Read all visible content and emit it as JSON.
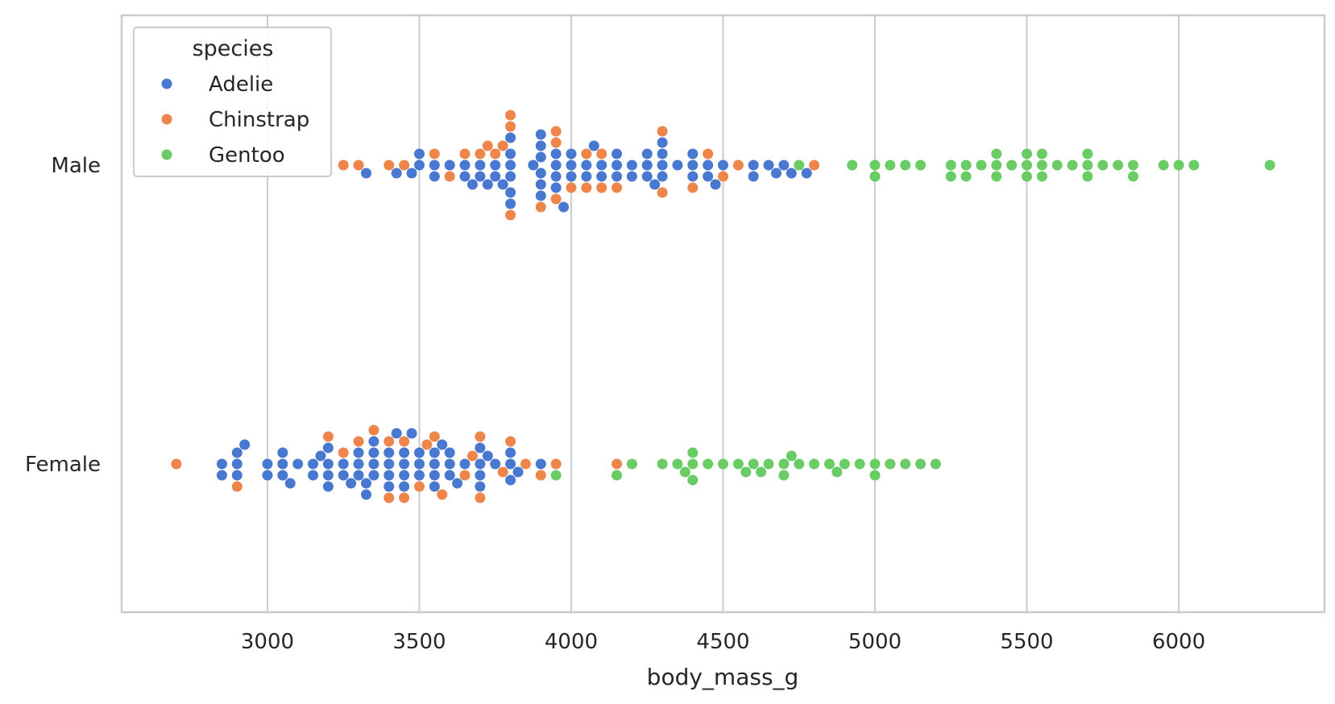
{
  "chart_data": {
    "type": "scatter",
    "kind": "swarm",
    "orientation": "horizontal",
    "title": "",
    "xlabel": "body_mass_g",
    "ylabel": "",
    "xlim": [
      2520,
      6480
    ],
    "xticks": [
      3000,
      3500,
      4000,
      4500,
      5000,
      5500,
      6000
    ],
    "xtick_labels": [
      "3000",
      "3500",
      "4000",
      "4500",
      "5000",
      "5500",
      "6000"
    ],
    "categories": [
      "Male",
      "Female"
    ],
    "grid": "x",
    "legend": {
      "title": "species",
      "placement": "top-left",
      "entries": [
        "Adelie",
        "Chinstrap",
        "Gentoo"
      ]
    },
    "colors": {
      "Adelie": "#4878d0",
      "Chinstrap": "#ee854a",
      "Gentoo": "#6acc64"
    },
    "series": [
      {
        "name": "Adelie",
        "points": [
          {
            "category": "Male",
            "values": [
              3325,
              3425,
              3475,
              3500,
              3500,
              3550,
              3550,
              3600,
              3650,
              3650,
              3675,
              3700,
              3700,
              3725,
              3750,
              3750,
              3775,
              3800,
              3800,
              3800,
              3800,
              3800,
              3800,
              3875,
              3900,
              3900,
              3900,
              3900,
              3900,
              3900,
              3950,
              3950,
              3950,
              3950,
              3975,
              4000,
              4000,
              4000,
              4050,
              4050,
              4075,
              4100,
              4100,
              4150,
              4150,
              4150,
              4200,
              4200,
              4250,
              4250,
              4250,
              4275,
              4300,
              4300,
              4300,
              4300,
              4350,
              4400,
              4400,
              4400,
              4450,
              4450,
              4475,
              4500,
              4600,
              4600,
              4650,
              4675,
              4700,
              4725,
              4775
            ]
          },
          {
            "category": "Female",
            "values": [
              2850,
              2850,
              2900,
              2900,
              2900,
              2925,
              3000,
              3000,
              3050,
              3050,
              3050,
              3075,
              3100,
              3150,
              3150,
              3175,
              3200,
              3200,
              3200,
              3200,
              3250,
              3250,
              3275,
              3300,
              3300,
              3300,
              3325,
              3325,
              3350,
              3350,
              3350,
              3350,
              3400,
              3400,
              3400,
              3400,
              3425,
              3450,
              3450,
              3450,
              3450,
              3475,
              3500,
              3500,
              3500,
              3550,
              3550,
              3550,
              3550,
              3575,
              3600,
              3600,
              3600,
              3625,
              3650,
              3700,
              3700,
              3700,
              3700,
              3725,
              3750,
              3800,
              3800,
              3800,
              3825,
              3900
            ]
          }
        ]
      },
      {
        "name": "Chinstrap",
        "points": [
          {
            "category": "Male",
            "values": [
              3250,
              3300,
              3400,
              3450,
              3550,
              3600,
              3650,
              3700,
              3725,
              3750,
              3775,
              3800,
              3800,
              3800,
              3900,
              3950,
              3950,
              3950,
              4000,
              4050,
              4050,
              4100,
              4100,
              4150,
              4300,
              4300,
              4400,
              4450,
              4500,
              4550,
              4800
            ]
          },
          {
            "category": "Female",
            "values": [
              2700,
              2900,
              3200,
              3250,
              3300,
              3350,
              3400,
              3400,
              3450,
              3450,
              3500,
              3525,
              3550,
              3575,
              3650,
              3675,
              3700,
              3700,
              3775,
              3800,
              3850,
              3900,
              3950,
              4150
            ]
          }
        ]
      },
      {
        "name": "Gentoo",
        "points": [
          {
            "category": "Male",
            "values": [
              4750,
              4925,
              5000,
              5000,
              5050,
              5100,
              5150,
              5250,
              5250,
              5300,
              5300,
              5350,
              5400,
              5400,
              5400,
              5450,
              5500,
              5500,
              5500,
              5550,
              5550,
              5550,
              5600,
              5650,
              5700,
              5700,
              5700,
              5750,
              5800,
              5850,
              5850,
              5950,
              6000,
              6050,
              6300
            ]
          },
          {
            "category": "Female",
            "values": [
              3950,
              4150,
              4200,
              4300,
              4350,
              4375,
              4400,
              4400,
              4400,
              4450,
              4500,
              4550,
              4575,
              4600,
              4625,
              4650,
              4700,
              4700,
              4725,
              4750,
              4800,
              4850,
              4875,
              4900,
              4950,
              5000,
              5000,
              5050,
              5100,
              5150,
              5200
            ]
          }
        ]
      }
    ]
  }
}
